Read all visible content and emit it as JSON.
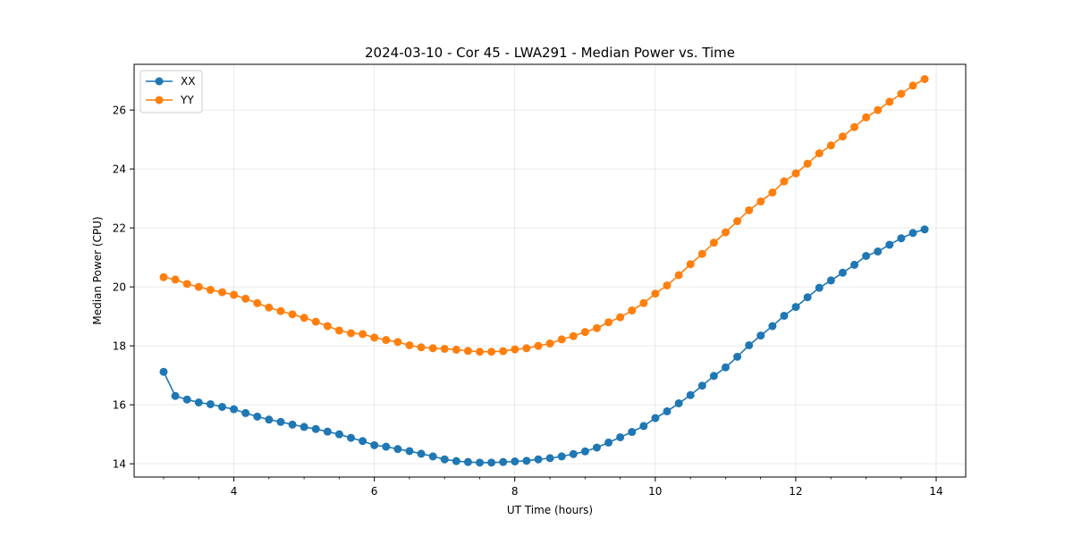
{
  "chart_data": {
    "type": "line",
    "title": "2024-03-10 - Cor 45 - LWA291 - Median Power vs. Time",
    "xlabel": "UT Time (hours)",
    "ylabel": "Median Power (CPU)",
    "xlim": [
      2.58,
      14.42
    ],
    "ylim": [
      13.55,
      27.55
    ],
    "xticks": [
      4,
      6,
      8,
      10,
      12,
      14
    ],
    "yticks": [
      14,
      16,
      18,
      20,
      22,
      24,
      26
    ],
    "xtick_labels": [
      "4",
      "6",
      "8",
      "10",
      "12",
      "14"
    ],
    "ytick_labels": [
      "14",
      "16",
      "18",
      "20",
      "22",
      "24",
      "26"
    ],
    "grid": true,
    "legend_position": "top-left",
    "x_start": 3.0,
    "x_step": 0.1667,
    "series": [
      {
        "name": "XX",
        "color": "#1f77b4",
        "values": [
          17.12,
          16.3,
          16.18,
          16.08,
          16.02,
          15.93,
          15.85,
          15.72,
          15.6,
          15.5,
          15.42,
          15.33,
          15.25,
          15.18,
          15.09,
          15.0,
          14.88,
          14.77,
          14.63,
          14.58,
          14.5,
          14.43,
          14.34,
          14.25,
          14.15,
          14.09,
          14.06,
          14.04,
          14.04,
          14.06,
          14.08,
          14.1,
          14.15,
          14.19,
          14.25,
          14.33,
          14.42,
          14.55,
          14.72,
          14.9,
          15.08,
          15.28,
          15.55,
          15.78,
          16.05,
          16.33,
          16.65,
          16.98,
          17.27,
          17.63,
          18.02,
          18.35,
          18.67,
          19.02,
          19.32,
          19.65,
          19.97,
          20.22,
          20.48,
          20.75,
          21.05,
          21.2,
          21.43,
          21.65,
          21.83,
          21.95
        ]
      },
      {
        "name": "YY",
        "color": "#ff7f0e",
        "values": [
          20.33,
          20.25,
          20.1,
          20.0,
          19.9,
          19.82,
          19.73,
          19.6,
          19.45,
          19.3,
          19.18,
          19.07,
          18.95,
          18.82,
          18.67,
          18.52,
          18.43,
          18.4,
          18.28,
          18.2,
          18.13,
          18.02,
          17.95,
          17.92,
          17.9,
          17.87,
          17.83,
          17.8,
          17.8,
          17.82,
          17.88,
          17.92,
          18.0,
          18.08,
          18.22,
          18.33,
          18.47,
          18.6,
          18.8,
          18.97,
          19.2,
          19.45,
          19.77,
          20.05,
          20.4,
          20.77,
          21.12,
          21.5,
          21.85,
          22.23,
          22.6,
          22.9,
          23.2,
          23.58,
          23.85,
          24.18,
          24.53,
          24.8,
          25.1,
          25.42,
          25.75,
          26.0,
          26.28,
          26.55,
          26.83,
          27.05
        ]
      }
    ]
  }
}
